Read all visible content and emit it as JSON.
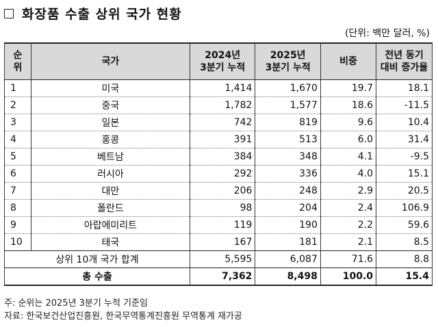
{
  "title": "화장품 수출 상위 국가 현황",
  "unit": "(단위: 백만 달러, %)",
  "headers": {
    "rank_line1": "순",
    "rank_line2": "위",
    "country": "국가",
    "y2024_line1": "2024년",
    "y2024_line2": "3분기 누적",
    "y2025_line1": "2025년",
    "y2025_line2": "3분기 누적",
    "share": "비중",
    "growth_line1": "전년 동기",
    "growth_line2": "대비 증가율"
  },
  "rows": [
    {
      "rank": "1",
      "country": "미국",
      "y2024": "1,414",
      "y2025": "1,670",
      "share": "19.7",
      "growth": "18.1"
    },
    {
      "rank": "2",
      "country": "중국",
      "y2024": "1,782",
      "y2025": "1,577",
      "share": "18.6",
      "growth": "-11.5"
    },
    {
      "rank": "3",
      "country": "일본",
      "y2024": "742",
      "y2025": "819",
      "share": "9.6",
      "growth": "10.4"
    },
    {
      "rank": "4",
      "country": "홍콩",
      "y2024": "391",
      "y2025": "513",
      "share": "6.0",
      "growth": "31.4"
    },
    {
      "rank": "5",
      "country": "베트남",
      "y2024": "384",
      "y2025": "348",
      "share": "4.1",
      "growth": "-9.5"
    },
    {
      "rank": "6",
      "country": "러시아",
      "y2024": "292",
      "y2025": "336",
      "share": "4.0",
      "growth": "15.1"
    },
    {
      "rank": "7",
      "country": "대만",
      "y2024": "206",
      "y2025": "248",
      "share": "2.9",
      "growth": "20.5"
    },
    {
      "rank": "8",
      "country": "폴란드",
      "y2024": "98",
      "y2025": "204",
      "share": "2.4",
      "growth": "106.9"
    },
    {
      "rank": "9",
      "country": "아랍에미리트",
      "y2024": "119",
      "y2025": "190",
      "share": "2.2",
      "growth": "59.6"
    },
    {
      "rank": "10",
      "country": "태국",
      "y2024": "167",
      "y2025": "181",
      "share": "2.1",
      "growth": "8.5"
    }
  ],
  "subtotal": {
    "label": "상위 10개 국가 합계",
    "y2024": "5,595",
    "y2025": "6,087",
    "share": "71.6",
    "growth": "8.8"
  },
  "total": {
    "label": "총 수출",
    "y2024": "7,362",
    "y2025": "8,498",
    "share": "100.0",
    "growth": "15.4"
  },
  "notes": {
    "note1": "주: 순위는 2025년 3분기 누적 기준임",
    "note2": "자료: 한국보건산업진흥원, 한국무역통계진흥원 무역통계 재가공"
  }
}
